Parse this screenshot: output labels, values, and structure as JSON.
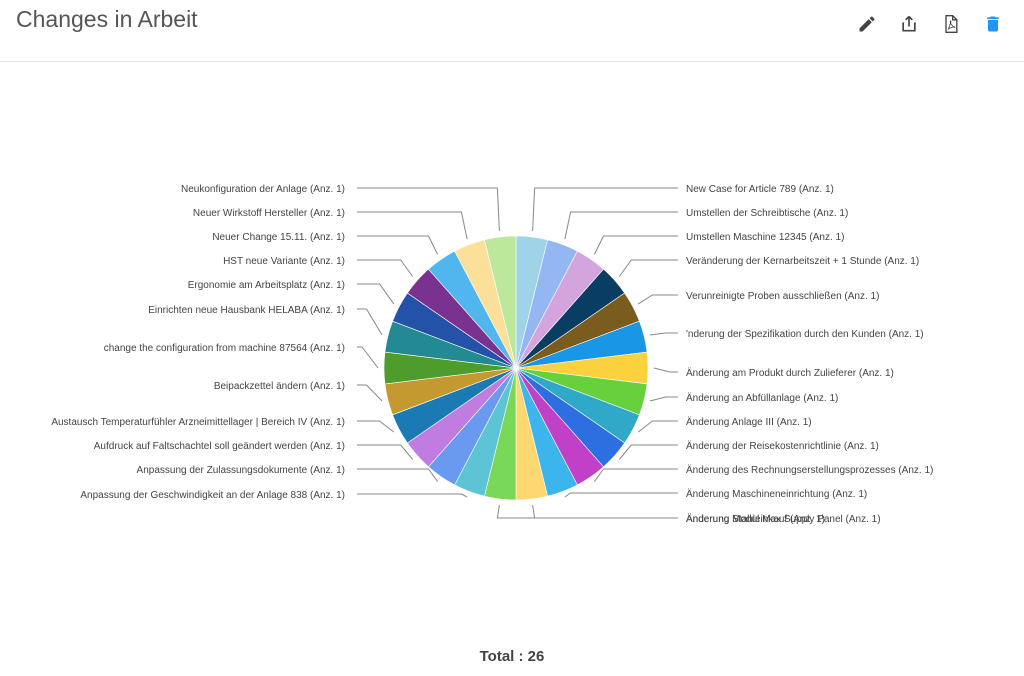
{
  "header": {
    "title": "Changes in Arbeit",
    "tools": [
      {
        "name": "edit-icon",
        "label": "edit"
      },
      {
        "name": "share-icon",
        "label": "share"
      },
      {
        "name": "pdf-icon",
        "label": "pdf"
      },
      {
        "name": "trash-icon",
        "label": "delete"
      }
    ],
    "delete_color": "#2196f3"
  },
  "total_label": "Total : 26",
  "chart_data": {
    "type": "pie",
    "title": "",
    "legend": "none",
    "slices": [
      {
        "label": "New Case for Article 789 (Anz. 1)",
        "value": 1,
        "color": "#9fd4e8"
      },
      {
        "label": "Umstellen der Schreibtische (Anz. 1)",
        "value": 1,
        "color": "#94b7f3"
      },
      {
        "label": "Umstellen Maschine 12345 (Anz. 1)",
        "value": 1,
        "color": "#d4a4de"
      },
      {
        "label": "Veränderung der Kernarbeitszeit + 1 Stunde (Anz. 1)",
        "value": 1,
        "color": "#0a3d62"
      },
      {
        "label": "Verunreinigte Proben ausschließen (Anz. 1)",
        "value": 1,
        "color": "#7a5c1f"
      },
      {
        "label": "'nderung der Spezifikation durch den Kunden (Anz. 1)",
        "value": 1,
        "color": "#1a96e6"
      },
      {
        "label": "Änderung am Produkt durch Zulieferer (Anz. 1)",
        "value": 1,
        "color": "#fbd23e"
      },
      {
        "label": "Änderung an Abfüllanlage (Anz. 1)",
        "value": 1,
        "color": "#66d13d"
      },
      {
        "label": "Änderung Anlage III (Anz. 1)",
        "value": 1,
        "color": "#30a9c8"
      },
      {
        "label": "Änderung der Reisekostenrichtlinie (Anz. 1)",
        "value": 1,
        "color": "#2d6ee0"
      },
      {
        "label": "Änderung des Rechnungserstellungsprozesses (Anz. 1)",
        "value": 1,
        "color": "#c040c8"
      },
      {
        "label": "Änderung Maschineneinrichtung (Anz. 1)",
        "value": 1,
        "color": "#3cb4ec"
      },
      {
        "label": "Änderung Modul Max Supply Panel (Anz. 1)",
        "value": 1,
        "color": "#fdd770"
      },
      {
        "label": "Änderung Stahleinkauf (Anz. 1)",
        "value": 1,
        "color": "#7ad858"
      },
      {
        "label": "Anpassung der Geschwindigkeit an der Anlage 838 (Anz. 1)",
        "value": 1,
        "color": "#5cc4d4"
      },
      {
        "label": "Anpassung der Zulassungsdokumente (Anz. 1)",
        "value": 1,
        "color": "#6a9af0"
      },
      {
        "label": "Aufdruck auf Faltschachtel soll geändert werden (Anz. 1)",
        "value": 1,
        "color": "#c07ce0"
      },
      {
        "label": "Austausch Temperaturfühler Arzneimittellager | Bereich IV (Anz. 1)",
        "value": 1,
        "color": "#1b7ab4"
      },
      {
        "label": "Beipackzettel ändern (Anz. 1)",
        "value": 1,
        "color": "#c49a30"
      },
      {
        "label": "change the configuration from machine 87564 (Anz. 1)",
        "value": 1,
        "color": "#4d9c2c"
      },
      {
        "label": "Einrichten neue Hausbank HELABA (Anz. 1)",
        "value": 1,
        "color": "#238a94"
      },
      {
        "label": "Ergonomie am Arbeitsplatz (Anz. 1)",
        "value": 1,
        "color": "#2452a8"
      },
      {
        "label": "HST neue Variante (Anz. 1)",
        "value": 1,
        "color": "#7a3291"
      },
      {
        "label": "Neuer Change 15.11. (Anz. 1)",
        "value": 1,
        "color": "#52b6ee"
      },
      {
        "label": "Neuer Wirkstoff Hersteller (Anz. 1)",
        "value": 1,
        "color": "#fbe09a"
      },
      {
        "label": "Neukonfiguration der Anlage (Anz. 1)",
        "value": 1,
        "color": "#bce89c"
      }
    ]
  }
}
